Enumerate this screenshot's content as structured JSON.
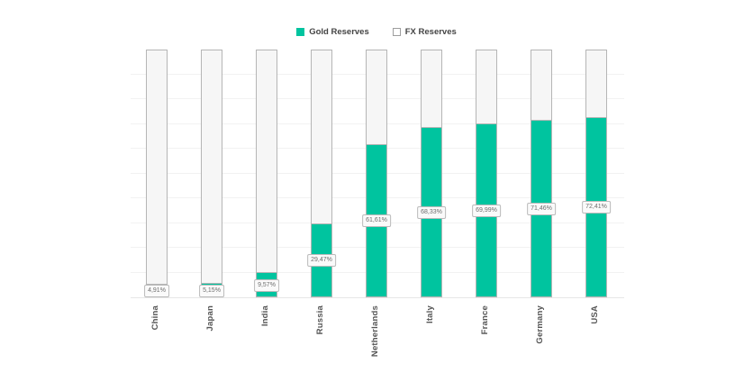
{
  "legend": {
    "position": "top-center",
    "items": [
      {
        "label": "Gold Reserves",
        "swatch": "filled-teal-square"
      },
      {
        "label": "FX Reserves",
        "swatch": "outlined-white-square"
      }
    ]
  },
  "colors": {
    "gold": "#00c49f",
    "fx_fill": "#f6f6f6",
    "bar_border": "#b5b5b5",
    "gridline": "#f2f2f2",
    "data_label_text": "#6e6e6e",
    "data_label_bg": "#fafafa",
    "data_label_border": "#bbbbbb",
    "legend_text": "#444444",
    "category_text": "#555555"
  },
  "chart_data": {
    "type": "bar",
    "variant": "stacked-100-percent",
    "orientation": "vertical",
    "title": "",
    "xlabel": "",
    "ylabel": "",
    "ylim": [
      0,
      100
    ],
    "grid": true,
    "grid_step_percent": 10,
    "legend_position": "top",
    "categories": [
      "China",
      "Japan",
      "India",
      "Russia",
      "Netherlands",
      "Italy",
      "France",
      "Germany",
      "USA"
    ],
    "series": [
      {
        "name": "Gold Reserves",
        "color": "#00c49f",
        "values": [
          4.91,
          5.15,
          9.57,
          29.47,
          61.61,
          68.33,
          69.99,
          71.46,
          72.41
        ]
      },
      {
        "name": "FX Reserves",
        "color": "#f6f6f6",
        "values": [
          95.09,
          94.85,
          90.43,
          70.53,
          38.39,
          31.67,
          30.01,
          28.54,
          27.59
        ]
      }
    ],
    "data_labels": [
      "4,91%",
      "5,15%",
      "9,57%",
      "29,47%",
      "61,61%",
      "68,33%",
      "69,99%",
      "71,46%",
      "72,41%"
    ],
    "data_label_position": "center-of-gold-segment",
    "category_label_rotation_deg": -90
  }
}
